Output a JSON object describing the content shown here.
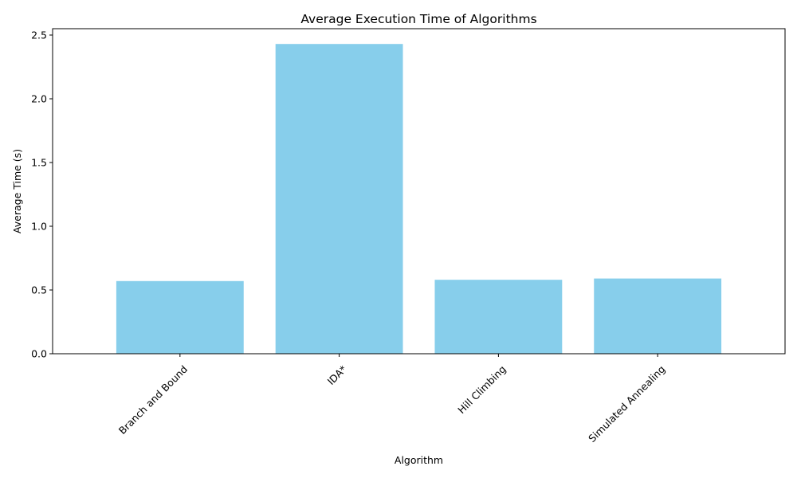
{
  "chart_data": {
    "type": "bar",
    "title": "Average Execution Time of Algorithms",
    "xlabel": "Algorithm",
    "ylabel": "Average Time (s)",
    "categories": [
      "Branch and Bound",
      "IDA*",
      "Hill Climbing",
      "Simulated Annealing"
    ],
    "values": [
      0.57,
      2.43,
      0.58,
      0.59
    ],
    "ylim": [
      0,
      2.55
    ],
    "yticks": [
      "0.0",
      "0.5",
      "1.0",
      "1.5",
      "2.0",
      "2.5"
    ],
    "bar_color": "#87CEEB",
    "xtick_rotation": 45,
    "grid": false,
    "legend": "none"
  }
}
